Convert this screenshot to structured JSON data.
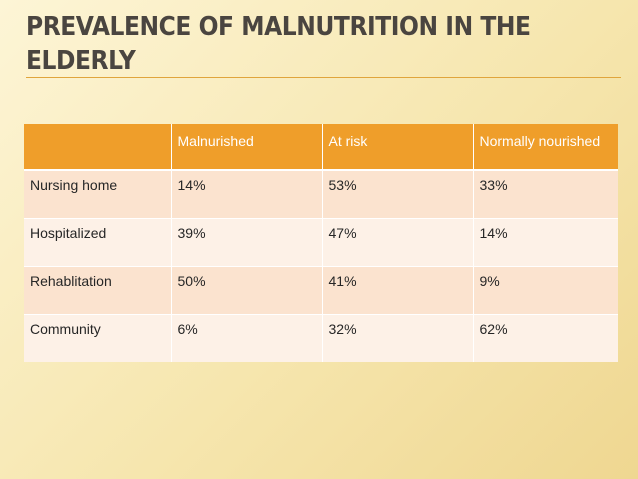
{
  "slide": {
    "title_line1": "PREVALENCE OF MALNUTRITION  IN THE",
    "title_line2": "ELDERLY"
  },
  "table": {
    "headers": [
      "",
      "Malnurished",
      "At risk",
      "Normally nourished"
    ],
    "rows": [
      [
        "Nursing home",
        "14%",
        "53%",
        "33%"
      ],
      [
        "Hospitalized",
        "39%",
        "47%",
        "14%"
      ],
      [
        "Rehablitation",
        "50%",
        "41%",
        "9%"
      ],
      [
        "Community",
        "6%",
        "32%",
        "62%"
      ]
    ]
  },
  "colors": {
    "accent": "#ef9e2a",
    "title": "#4a4540",
    "row_dark": "#fbe3cf",
    "row_light": "#fdf1e7"
  }
}
